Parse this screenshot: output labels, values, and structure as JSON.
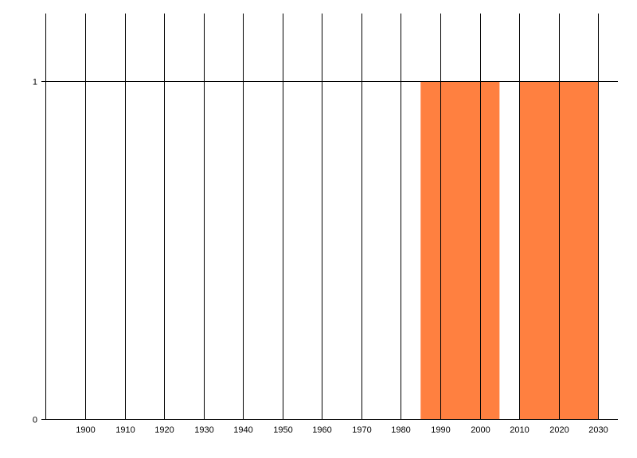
{
  "chart_data": {
    "type": "bar",
    "title": "",
    "xlabel": "",
    "ylabel": "",
    "xlim": [
      1890,
      2035
    ],
    "ylim": [
      0,
      1.2
    ],
    "x_ticks": [
      1900,
      1910,
      1920,
      1930,
      1940,
      1950,
      1960,
      1970,
      1980,
      1990,
      2000,
      2010,
      2020,
      2030
    ],
    "y_ticks": [
      0,
      1
    ],
    "grid": true,
    "legend": "none",
    "series": [
      {
        "color": "#FF8040",
        "bars": [
          {
            "x_start": 1985,
            "x_end": 2005,
            "value": 1
          },
          {
            "x_start": 2010,
            "x_end": 2030,
            "value": 1
          }
        ]
      }
    ]
  }
}
